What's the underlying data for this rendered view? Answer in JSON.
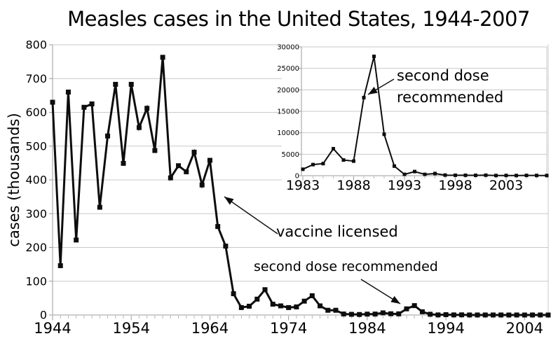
{
  "title": "Measles cases in the United States, 1944-2007",
  "colors": {
    "ink": "#0d0d0d",
    "grid": "#c8c8c8",
    "axis": "#9b9b9b",
    "minor_tick": "#b5b5b5",
    "background": "#ffffff"
  },
  "chart_data": [
    {
      "id": "main",
      "type": "line",
      "title": "Measles cases in the United States, 1944-2007",
      "xlabel": "",
      "ylabel": "cases (thousands)",
      "xlim": [
        1944,
        2007
      ],
      "ylim": [
        0,
        800
      ],
      "grid": true,
      "legend": false,
      "xticks": [
        1944,
        1954,
        1964,
        1974,
        1984,
        1994,
        2004
      ],
      "yticks": [
        0,
        100,
        200,
        300,
        400,
        500,
        600,
        700,
        800
      ],
      "x": [
        1944,
        1945,
        1946,
        1947,
        1948,
        1949,
        1950,
        1951,
        1952,
        1953,
        1954,
        1955,
        1956,
        1957,
        1958,
        1959,
        1960,
        1961,
        1962,
        1963,
        1964,
        1965,
        1966,
        1967,
        1968,
        1969,
        1970,
        1971,
        1972,
        1973,
        1974,
        1975,
        1976,
        1977,
        1978,
        1979,
        1980,
        1981,
        1982,
        1983,
        1984,
        1985,
        1986,
        1987,
        1988,
        1989,
        1990,
        1991,
        1992,
        1993,
        1994,
        1995,
        1996,
        1997,
        1998,
        1999,
        2000,
        2001,
        2002,
        2003,
        2004,
        2005,
        2006,
        2007
      ],
      "values": [
        630,
        146,
        660,
        222,
        615,
        625,
        319,
        530,
        683,
        449,
        683,
        555,
        612,
        487,
        763,
        406,
        442,
        424,
        482,
        385,
        458,
        262,
        204,
        63,
        22,
        26,
        47,
        75,
        32,
        27,
        22,
        24,
        41,
        57,
        27,
        14,
        14,
        3,
        2,
        1.5,
        2.6,
        2.8,
        6.3,
        3.7,
        3.4,
        18.2,
        27.8,
        9.6,
        2.2,
        0.3,
        1,
        0.3,
        0.5,
        0.1,
        0.1,
        0.1,
        0.1,
        0.1,
        0,
        0.1,
        0,
        0.1,
        0.1,
        0
      ],
      "annotations": [
        {
          "text": "vaccine licensed"
        },
        {
          "text": "second dose recommended"
        }
      ]
    },
    {
      "id": "inset",
      "type": "line",
      "title": "",
      "xlabel": "",
      "ylabel": "",
      "xlim": [
        1983,
        2007
      ],
      "ylim": [
        0,
        30000
      ],
      "grid": true,
      "legend": false,
      "xticks": [
        1983,
        1988,
        1993,
        1998,
        2003
      ],
      "yticks": [
        0,
        5000,
        10000,
        15000,
        20000,
        25000,
        30000
      ],
      "x": [
        1983,
        1984,
        1985,
        1986,
        1987,
        1988,
        1989,
        1990,
        1991,
        1992,
        1993,
        1994,
        1995,
        1996,
        1997,
        1998,
        1999,
        2000,
        2001,
        2002,
        2003,
        2004,
        2005,
        2006,
        2007
      ],
      "values": [
        1497,
        2587,
        2822,
        6282,
        3655,
        3396,
        18193,
        27786,
        9643,
        2237,
        312,
        963,
        309,
        508,
        138,
        100,
        100,
        86,
        116,
        44,
        56,
        37,
        66,
        55,
        43
      ],
      "annotations": [
        {
          "line1": "second dose",
          "line2": "recommended"
        }
      ]
    }
  ]
}
